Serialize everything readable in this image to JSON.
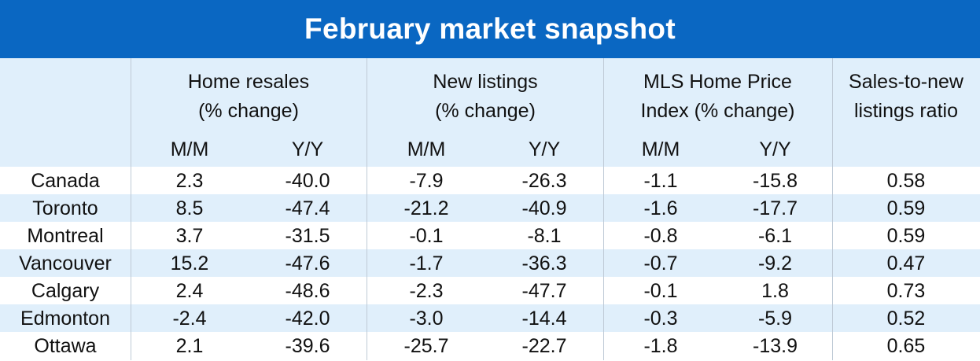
{
  "title": "February market snapshot",
  "colors": {
    "banner": "#0a67c2",
    "shade": "#e0effb",
    "text": "#111111"
  },
  "chart_data": {
    "type": "table",
    "title": "February market snapshot",
    "column_groups": [
      {
        "line1": "Home resales",
        "line2": "(% change)",
        "subcolumns": [
          "M/M",
          "Y/Y"
        ]
      },
      {
        "line1": "New listings",
        "line2": "(% change)",
        "subcolumns": [
          "M/M",
          "Y/Y"
        ]
      },
      {
        "line1": "MLS Home Price",
        "line2": "Index (% change)",
        "subcolumns": [
          "M/M",
          "Y/Y"
        ]
      },
      {
        "line1": "Sales-to-new",
        "line2": "listings ratio",
        "subcolumns": []
      }
    ],
    "rows": [
      {
        "city": "Canada",
        "values": [
          "2.3",
          "-40.0",
          "-7.9",
          "-26.3",
          "-1.1",
          "-15.8",
          "0.58"
        ]
      },
      {
        "city": "Toronto",
        "values": [
          "8.5",
          "-47.4",
          "-21.2",
          "-40.9",
          "-1.6",
          "-17.7",
          "0.59"
        ]
      },
      {
        "city": "Montreal",
        "values": [
          "3.7",
          "-31.5",
          "-0.1",
          "-8.1",
          "-0.8",
          "-6.1",
          "0.59"
        ]
      },
      {
        "city": "Vancouver",
        "values": [
          "15.2",
          "-47.6",
          "-1.7",
          "-36.3",
          "-0.7",
          "-9.2",
          "0.47"
        ]
      },
      {
        "city": "Calgary",
        "values": [
          "2.4",
          "-48.6",
          "-2.3",
          "-47.7",
          "-0.1",
          "1.8",
          "0.73"
        ]
      },
      {
        "city": "Edmonton",
        "values": [
          "-2.4",
          "-42.0",
          "-3.0",
          "-14.4",
          "-0.3",
          "-5.9",
          "0.52"
        ]
      },
      {
        "city": "Ottawa",
        "values": [
          "2.1",
          "-39.6",
          "-25.7",
          "-22.7",
          "-1.8",
          "-13.9",
          "0.65"
        ]
      }
    ]
  }
}
